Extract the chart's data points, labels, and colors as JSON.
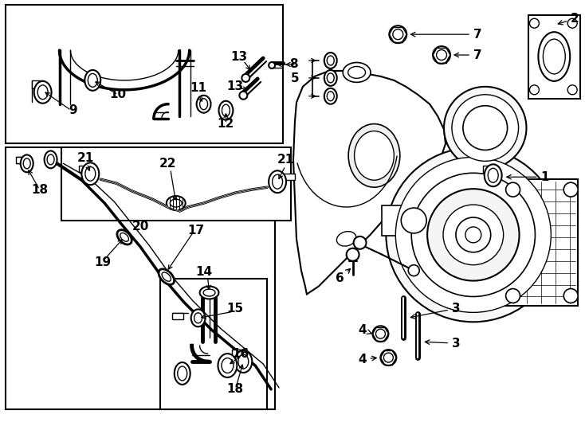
{
  "bg_color": "#ffffff",
  "line_color": "#000000",
  "label_fontsize": 10,
  "fig_width": 7.34,
  "fig_height": 5.4,
  "dpi": 100
}
